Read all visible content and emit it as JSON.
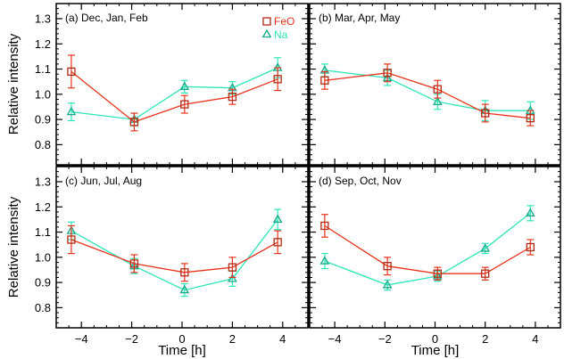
{
  "chart_data": [
    {
      "type": "line",
      "panel_label": "(a) Dec, Jan, Feb",
      "xlabel": "",
      "ylabel": "Relative intensity",
      "xlim": [
        -5,
        5
      ],
      "ylim": [
        0.72,
        1.36
      ],
      "series": [
        {
          "name": "FeO",
          "x": [
            -4.4,
            -1.9,
            0.1,
            2.0,
            3.8
          ],
          "y": [
            1.09,
            0.89,
            0.96,
            0.99,
            1.06
          ],
          "err": [
            0.065,
            0.035,
            0.035,
            0.03,
            0.045
          ]
        },
        {
          "name": "Na",
          "x": [
            -4.4,
            -1.9,
            0.1,
            2.0,
            3.8
          ],
          "y": [
            0.93,
            0.9,
            1.03,
            1.025,
            1.105
          ],
          "err": [
            0.035,
            0.025,
            0.025,
            0.025,
            0.04
          ]
        }
      ]
    },
    {
      "type": "line",
      "panel_label": "(b) Mar, Apr, May",
      "xlabel": "",
      "ylabel": "",
      "xlim": [
        -5,
        5
      ],
      "ylim": [
        0.72,
        1.36
      ],
      "series": [
        {
          "name": "FeO",
          "x": [
            -4.4,
            -1.9,
            0.1,
            2.0,
            3.8
          ],
          "y": [
            1.055,
            1.085,
            1.02,
            0.925,
            0.905
          ],
          "err": [
            0.035,
            0.035,
            0.035,
            0.035,
            0.03
          ]
        },
        {
          "name": "Na",
          "x": [
            -4.4,
            -1.9,
            0.1,
            2.0,
            3.8
          ],
          "y": [
            1.095,
            1.065,
            0.97,
            0.935,
            0.935
          ],
          "err": [
            0.025,
            0.03,
            0.03,
            0.04,
            0.035
          ]
        }
      ]
    },
    {
      "type": "line",
      "panel_label": "(c) Jun, Jul, Aug",
      "xlabel": "Time [h]",
      "ylabel": "Relative intensity",
      "xlim": [
        -5,
        5
      ],
      "ylim": [
        0.72,
        1.36
      ],
      "series": [
        {
          "name": "FeO",
          "x": [
            -4.4,
            -1.9,
            0.1,
            2.0,
            3.8
          ],
          "y": [
            1.07,
            0.975,
            0.94,
            0.96,
            1.06
          ],
          "err": [
            0.055,
            0.035,
            0.035,
            0.04,
            0.045
          ]
        },
        {
          "name": "Na",
          "x": [
            -4.4,
            -1.9,
            0.1,
            2.0,
            3.8
          ],
          "y": [
            1.105,
            0.965,
            0.87,
            0.915,
            1.15
          ],
          "err": [
            0.035,
            0.03,
            0.025,
            0.03,
            0.04
          ]
        }
      ]
    },
    {
      "type": "line",
      "panel_label": "(d) Sep, Oct, Nov",
      "xlabel": "Time [h]",
      "ylabel": "",
      "xlim": [
        -5,
        5
      ],
      "ylim": [
        0.72,
        1.36
      ],
      "series": [
        {
          "name": "FeO",
          "x": [
            -4.4,
            -1.9,
            0.1,
            2.0,
            3.8
          ],
          "y": [
            1.125,
            0.965,
            0.935,
            0.935,
            1.04
          ],
          "err": [
            0.045,
            0.035,
            0.025,
            0.025,
            0.03
          ]
        },
        {
          "name": "Na",
          "x": [
            -4.4,
            -1.9,
            0.1,
            2.0,
            3.8
          ],
          "y": [
            0.985,
            0.89,
            0.925,
            1.035,
            1.175
          ],
          "err": [
            0.03,
            0.02,
            0.02,
            0.02,
            0.03
          ]
        }
      ]
    }
  ],
  "axes": {
    "x_ticks": [
      -4,
      -2,
      0,
      2,
      4
    ],
    "y_ticks": [
      0.8,
      0.9,
      1.0,
      1.1,
      1.2,
      1.3
    ],
    "x_tick_labels": [
      "−4",
      "−2",
      "0",
      "2",
      "4"
    ],
    "y_tick_labels": [
      "0.8",
      "0.9",
      "1.0",
      "1.1",
      "1.2",
      "1.3"
    ]
  },
  "legend": {
    "items": [
      {
        "name": "FeO",
        "marker": "square"
      },
      {
        "name": "Na",
        "marker": "triangle"
      }
    ],
    "placement": "top-right of panel (a)"
  },
  "colors": {
    "FeO": "#e8341c",
    "FeO_marker": "#b02a14",
    "Na": "#2ee6b8",
    "Na_marker": "#16a88a"
  }
}
